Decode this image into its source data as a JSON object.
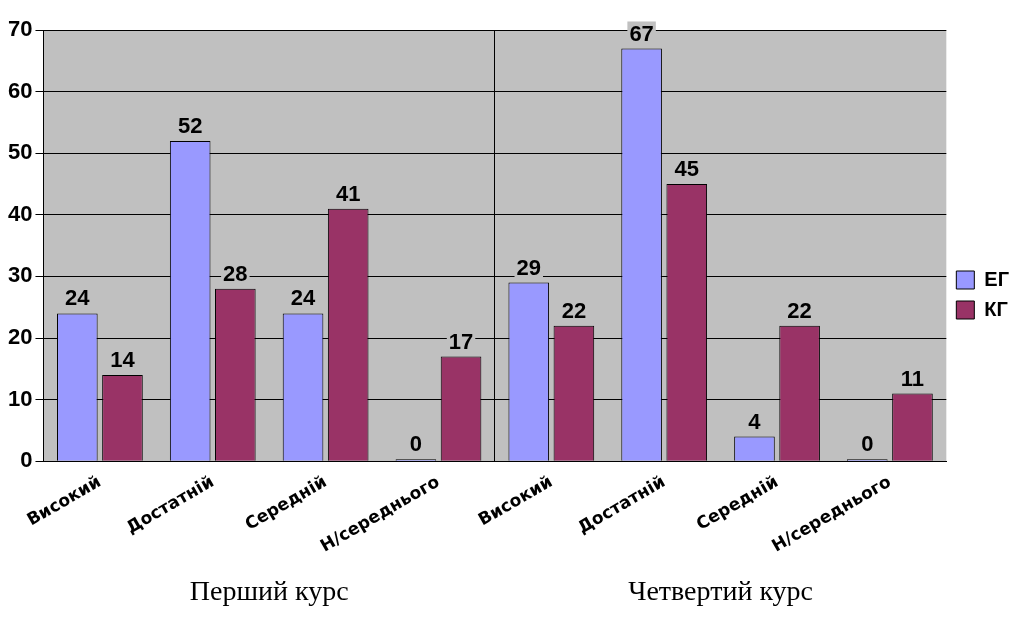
{
  "chart_data": {
    "type": "bar",
    "categories": [
      "Високий",
      "Достатній",
      "Середній",
      "Н/середнього",
      "Високий",
      "Достатній",
      "Середній",
      "Н/середнього"
    ],
    "series": [
      {
        "name": "ЕГ",
        "color": "#9999ff",
        "values": [
          24,
          52,
          24,
          0,
          29,
          67,
          4,
          0
        ]
      },
      {
        "name": "КГ",
        "color": "#993366",
        "values": [
          14,
          28,
          41,
          17,
          22,
          45,
          22,
          11
        ]
      }
    ],
    "ylim": [
      0,
      70
    ],
    "yticks": [
      0,
      10,
      20,
      30,
      40,
      50,
      60,
      70
    ],
    "grid": "y",
    "legend": "right",
    "data_labels": true,
    "annotations": [
      "Перший курс",
      "Четвертий курс"
    ]
  }
}
